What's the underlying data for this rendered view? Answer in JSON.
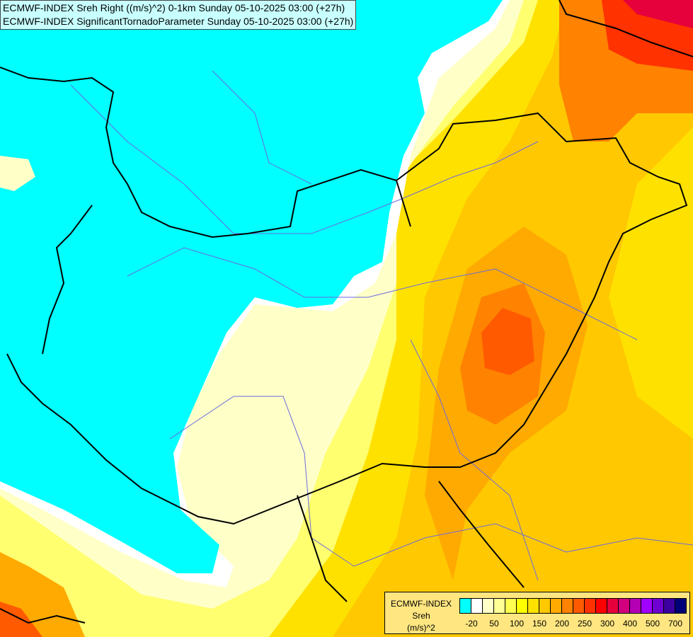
{
  "title": {
    "line1": "ECMWF-INDEX Sreh Right ((m/s)^2) 0-1km Sunday 05-10-2025 03:00 (+27h)",
    "line2": "ECMWF-INDEX SignificantTornadoParameter Sunday 05-10-2025 03:00 (+27h)"
  },
  "legend": {
    "model": "ECMWF-INDEX",
    "variable": "Sreh",
    "unit": "(m/s)^2",
    "colors": [
      "#00ffff",
      "#ffffff",
      "#ffffc8",
      "#ffff96",
      "#ffff50",
      "#ffff00",
      "#ffe100",
      "#ffc800",
      "#ffaa00",
      "#ff8200",
      "#ff5a00",
      "#ff3200",
      "#ff0000",
      "#e6003c",
      "#d2007d",
      "#b400b4",
      "#a000ff",
      "#6e00d2",
      "#3c00a0",
      "#000078"
    ],
    "ticks": [
      "-20",
      "50",
      "100",
      "150",
      "200",
      "250",
      "300",
      "400",
      "500",
      "700"
    ]
  }
}
